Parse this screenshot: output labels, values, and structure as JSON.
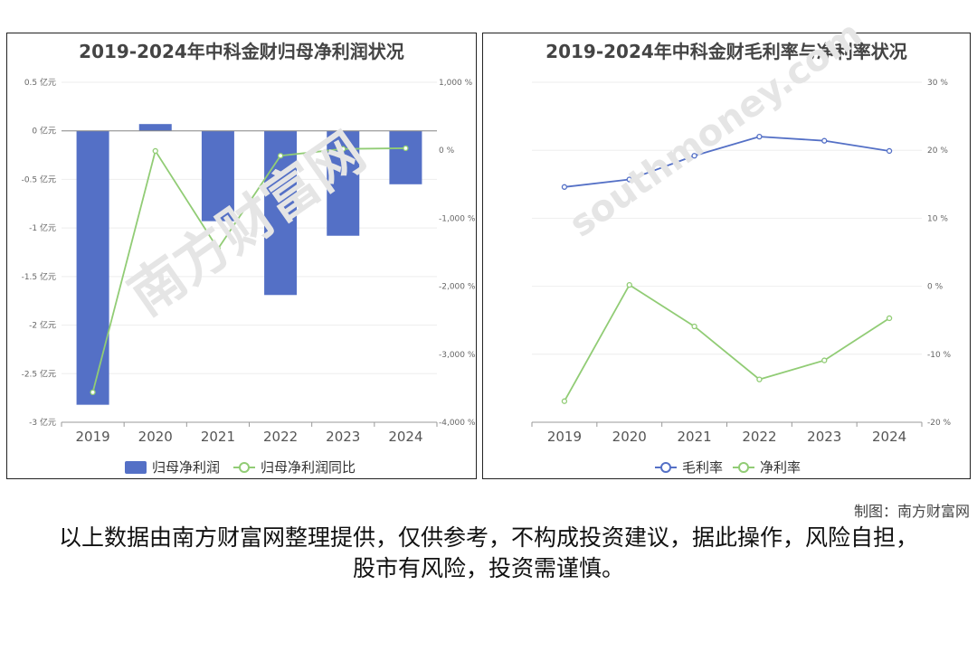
{
  "chart_data": [
    {
      "type": "bar",
      "title": "2019-2024年中科金财归母净利润状况",
      "categories": [
        "2019",
        "2020",
        "2021",
        "2022",
        "2023",
        "2024"
      ],
      "series": [
        {
          "name": "归母净利润",
          "type": "bar",
          "axis": "left",
          "color": "#5470c6",
          "values": [
            -2.82,
            0.07,
            -0.93,
            -1.69,
            -1.08,
            -0.55
          ]
        },
        {
          "name": "归母净利润同比",
          "type": "line",
          "axis": "right",
          "color": "#91cc75",
          "values": [
            -3560,
            -10,
            -1450,
            -80,
            20,
            30
          ]
        }
      ],
      "y_left": {
        "ylim": [
          -3,
          0.5
        ],
        "ticks": [
          "0.5 亿元",
          "0 亿元",
          "-0.5 亿元",
          "-1 亿元",
          "-1.5 亿元",
          "-2 亿元",
          "-2.5 亿元",
          "-3 亿元"
        ]
      },
      "y_right": {
        "ylim": [
          -4000,
          1000
        ],
        "ticks": [
          "1,000 %",
          "0 %",
          "-1,000 %",
          "-2,000 %",
          "-3,000 %",
          "-4,000 %"
        ]
      },
      "legend": "bottom"
    },
    {
      "type": "line",
      "title": "2019-2024年中科金财毛利率与净利率状况",
      "categories": [
        "2019",
        "2020",
        "2021",
        "2022",
        "2023",
        "2024"
      ],
      "series": [
        {
          "name": "毛利率",
          "color": "#5470c6",
          "values": [
            14.6,
            15.7,
            19.2,
            22.0,
            21.4,
            19.9
          ]
        },
        {
          "name": "净利率",
          "color": "#91cc75",
          "values": [
            -16.9,
            0.2,
            -5.9,
            -13.7,
            -10.9,
            -4.7
          ]
        }
      ],
      "y_right": {
        "ylim": [
          -20,
          30
        ],
        "ticks": [
          "30 %",
          "20 %",
          "10 %",
          "0 %",
          "-10 %",
          "-20 %"
        ]
      },
      "legend": "bottom"
    }
  ],
  "footer": {
    "credit": "制图：南方财富网",
    "disclaimer": "以上数据由南方财富网整理提供，仅供参考，不构成投资建议，据此操作，风险自担，股市有风险，投资需谨慎。"
  },
  "watermark": {
    "cn": "南方财富网",
    "en": "southmoney.com"
  },
  "colors": {
    "bar": "#5470c6",
    "line_green": "#91cc75",
    "line_blue": "#5470c6"
  }
}
